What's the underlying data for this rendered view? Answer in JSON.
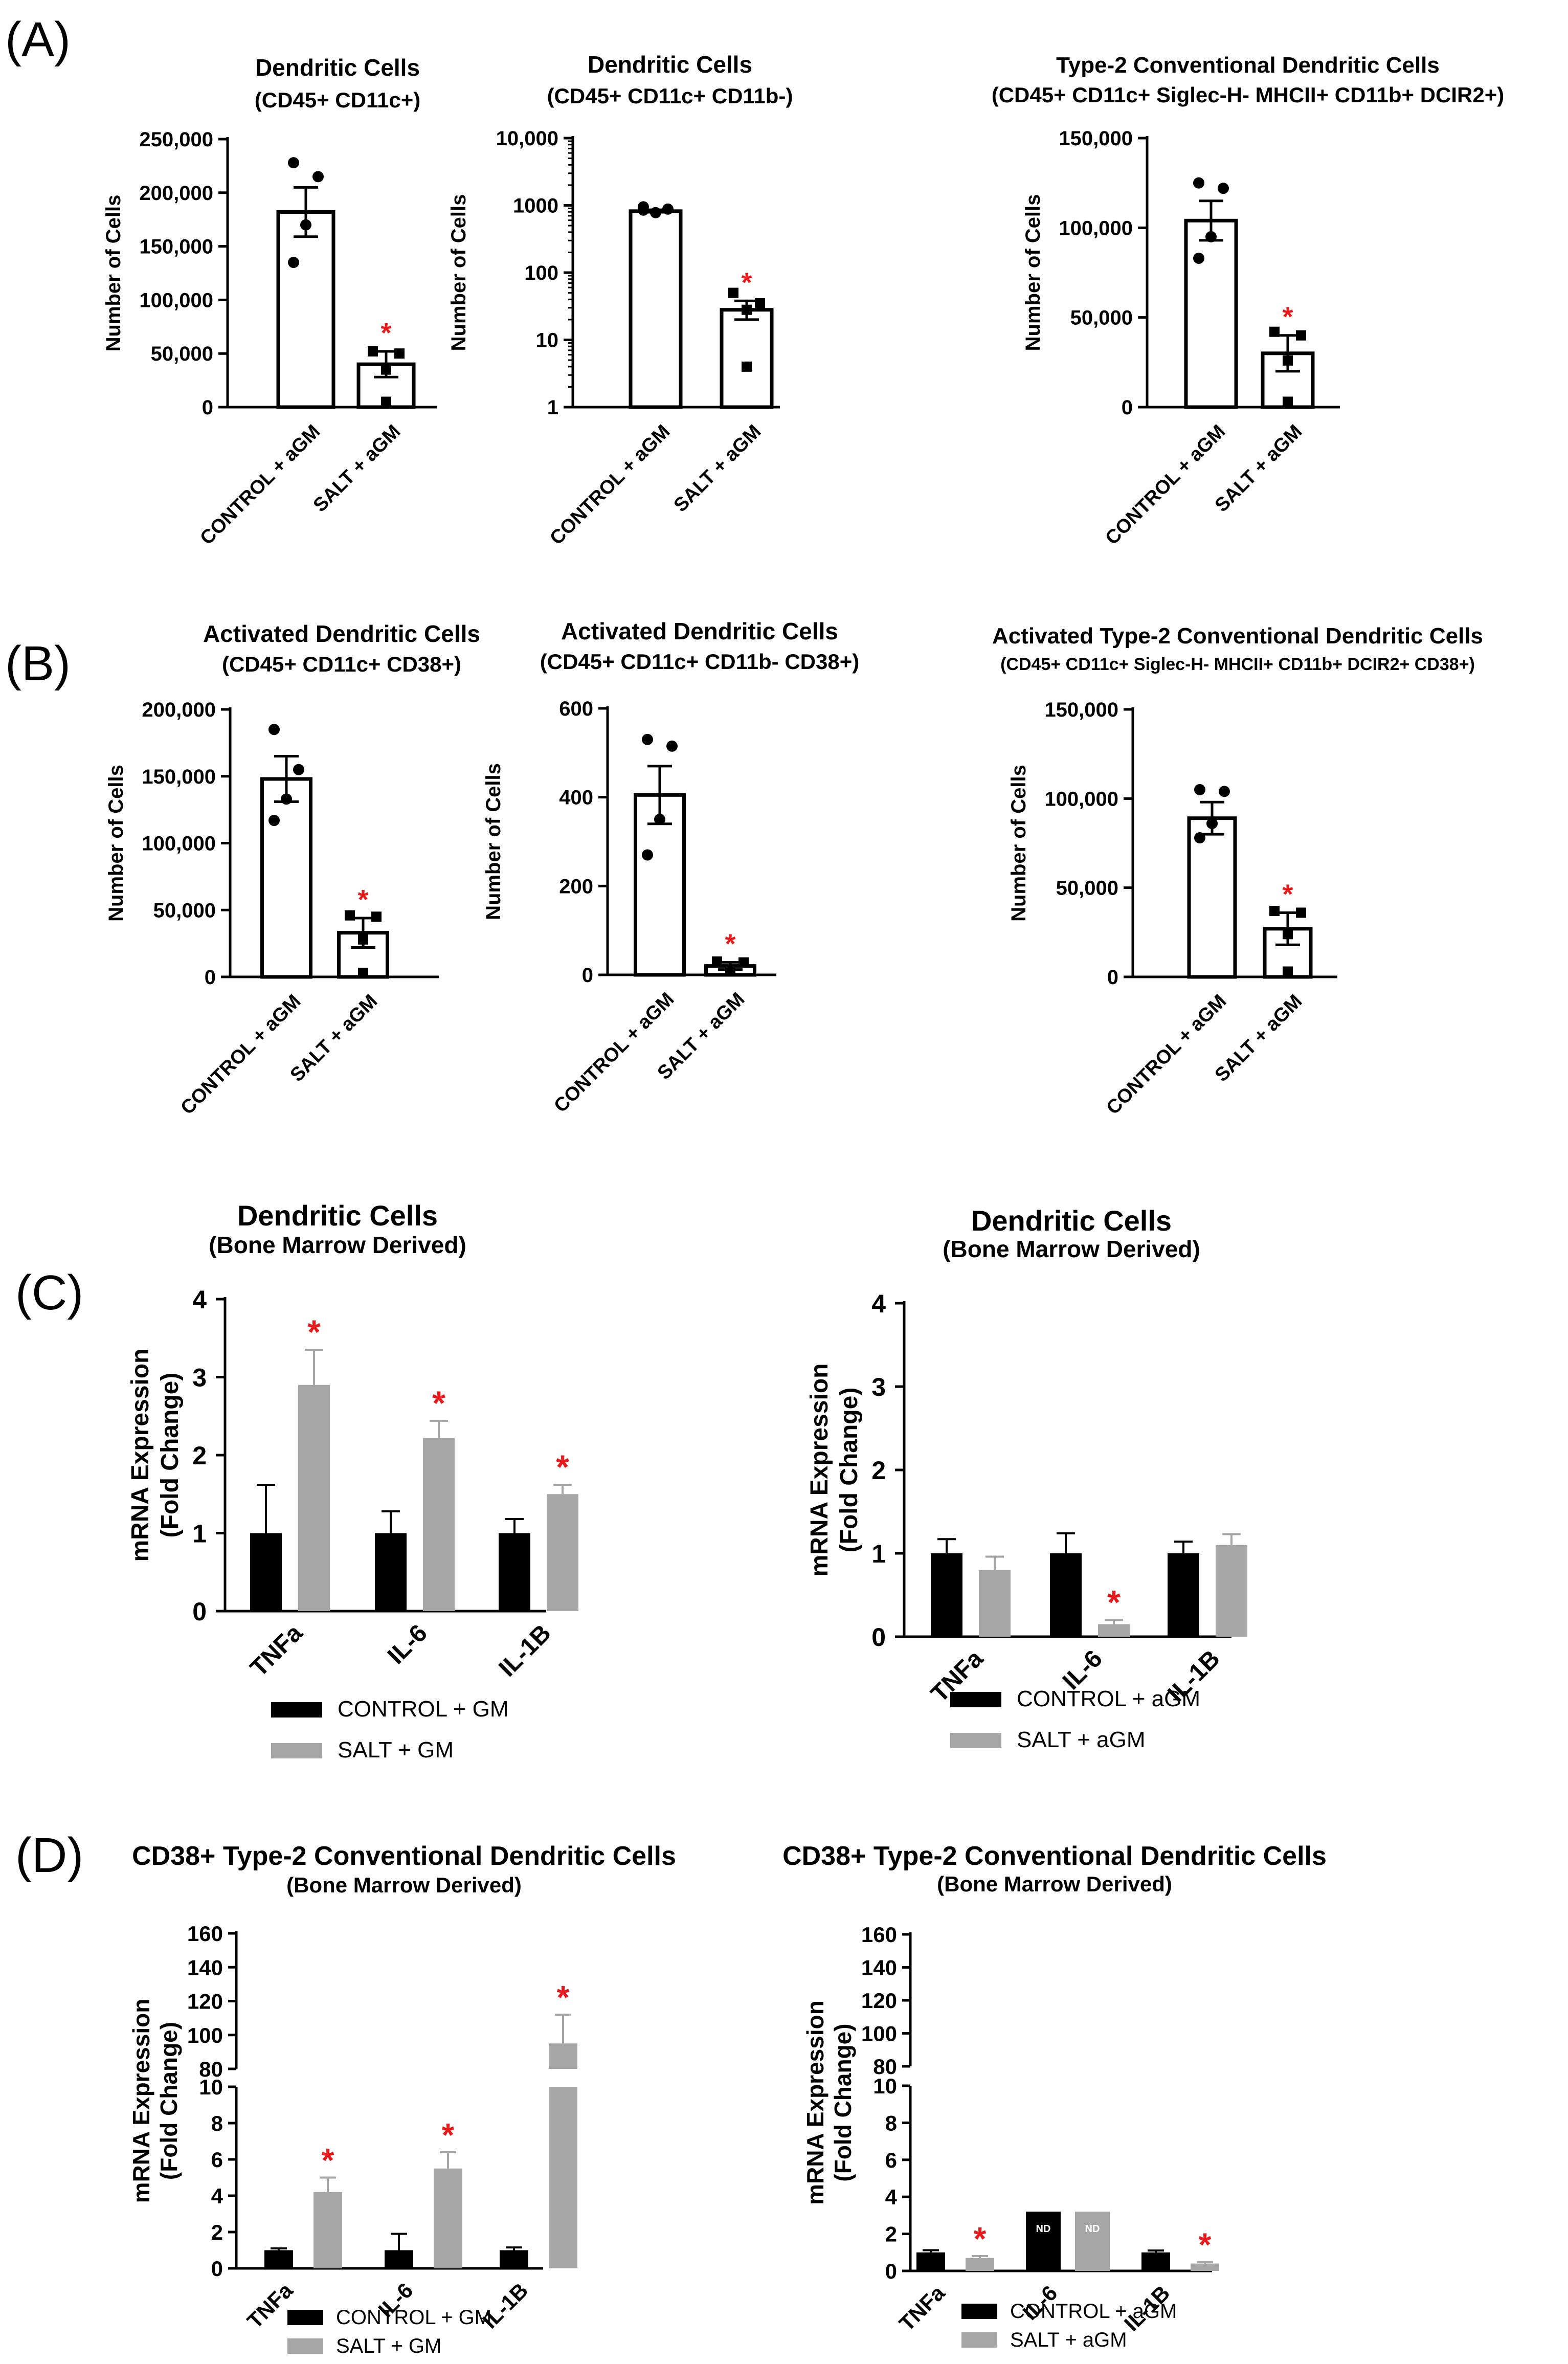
{
  "figure": {
    "panel_labels": [
      "(A)",
      "(B)",
      "(C)",
      "(D)"
    ],
    "colors": {
      "control": "#000000",
      "salt": "#a6a6a6",
      "significance": "#e8191a",
      "axis": "#000000",
      "bar_outline": "#000000",
      "bar_fill": "#ffffff"
    },
    "nd_label": "ND"
  },
  "chart_data": [
    {
      "id": "A1",
      "type": "bar",
      "title": "Dendritic Cells",
      "subtitle": "(CD45+ CD11c+)",
      "ylabel": "Number of Cells",
      "yscale": "linear",
      "ylim": [
        0,
        250000
      ],
      "yticks": [
        0,
        50000,
        100000,
        150000,
        200000,
        250000
      ],
      "ytick_labels": [
        "0",
        "50,000",
        "100,000",
        "150,000",
        "200,000",
        "250,000"
      ],
      "categories": [
        "CONTROL + aGM",
        "SALT + aGM"
      ],
      "values": [
        182000,
        40000
      ],
      "errors": [
        23000,
        12000
      ],
      "points": [
        [
          228000,
          215000,
          170000,
          135000
        ],
        [
          52000,
          50000,
          35000,
          5000
        ]
      ],
      "significant": [
        false,
        true
      ],
      "star": "*"
    },
    {
      "id": "A2",
      "type": "bar",
      "title": "Dendritic Cells",
      "subtitle": "(CD45+ CD11c+ CD11b-)",
      "ylabel": "Number of Cells",
      "yscale": "log",
      "ylim": [
        1,
        10000
      ],
      "yticks": [
        1,
        10,
        100,
        1000,
        10000
      ],
      "ytick_labels": [
        "1",
        "10",
        "100",
        "1000",
        "10,000"
      ],
      "categories": [
        "CONTROL + aGM",
        "SALT + aGM"
      ],
      "values": [
        820,
        28
      ],
      "errors": [
        [
          790,
          860
        ],
        [
          20,
          38
        ]
      ],
      "points": [
        [
          950,
          880,
          780,
          850
        ],
        [
          50,
          35,
          28,
          4
        ]
      ],
      "significant": [
        false,
        true
      ],
      "star": "*"
    },
    {
      "id": "A3",
      "type": "bar",
      "title": "Type-2 Conventional Dendritic Cells",
      "subtitle": "(CD45+ CD11c+ Siglec-H- MHCII+ CD11b+ DCIR2+)",
      "ylabel": "Number of Cells",
      "yscale": "linear",
      "ylim": [
        0,
        150000
      ],
      "yticks": [
        0,
        50000,
        100000,
        150000
      ],
      "ytick_labels": [
        "0",
        "50,000",
        "100,000",
        "150,000"
      ],
      "categories": [
        "CONTROL + aGM",
        "SALT + aGM"
      ],
      "values": [
        104000,
        30000
      ],
      "errors": [
        11000,
        10000
      ],
      "points": [
        [
          125000,
          122000,
          95000,
          83000
        ],
        [
          42000,
          40000,
          26000,
          3000
        ]
      ],
      "significant": [
        false,
        true
      ],
      "star": "*"
    },
    {
      "id": "B1",
      "type": "bar",
      "title": "Activated Dendritic Cells",
      "subtitle": "(CD45+ CD11c+ CD38+)",
      "ylabel": "Number of Cells",
      "yscale": "linear",
      "ylim": [
        0,
        200000
      ],
      "yticks": [
        0,
        50000,
        100000,
        150000,
        200000
      ],
      "ytick_labels": [
        "0",
        "50,000",
        "100,000",
        "150,000",
        "200,000"
      ],
      "categories": [
        "CONTROL + aGM",
        "SALT + aGM"
      ],
      "values": [
        148000,
        33000
      ],
      "errors": [
        17000,
        11000
      ],
      "points": [
        [
          185000,
          155000,
          133000,
          117000
        ],
        [
          46000,
          45000,
          28000,
          3000
        ]
      ],
      "significant": [
        false,
        true
      ],
      "star": "*"
    },
    {
      "id": "B2",
      "type": "bar",
      "title": "Activated Dendritic Cells",
      "subtitle": "(CD45+ CD11c+ CD11b- CD38+)",
      "ylabel": "Number of Cells",
      "yscale": "linear",
      "ylim": [
        0,
        600
      ],
      "yticks": [
        0,
        200,
        400,
        600
      ],
      "ytick_labels": [
        "0",
        "200",
        "400",
        "600"
      ],
      "categories": [
        "CONTROL + aGM",
        "SALT + aGM"
      ],
      "values": [
        405,
        20
      ],
      "errors": [
        65,
        8
      ],
      "points": [
        [
          530,
          515,
          350,
          270
        ],
        [
          30,
          28,
          12,
          8
        ]
      ],
      "significant": [
        false,
        true
      ],
      "star": "*"
    },
    {
      "id": "B3",
      "type": "bar",
      "title": "Activated Type-2 Conventional Dendritic Cells",
      "subtitle": "(CD45+ CD11c+ Siglec-H- MHCII+ CD11b+ DCIR2+ CD38+)",
      "ylabel": "Number of Cells",
      "yscale": "linear",
      "ylim": [
        0,
        150000
      ],
      "yticks": [
        0,
        50000,
        100000,
        150000
      ],
      "ytick_labels": [
        "0",
        "50,000",
        "100,000",
        "150,000"
      ],
      "categories": [
        "CONTROL + aGM",
        "SALT + aGM"
      ],
      "values": [
        89000,
        27000
      ],
      "errors": [
        9000,
        9000
      ],
      "points": [
        [
          105000,
          104000,
          86000,
          78000
        ],
        [
          37000,
          36000,
          24000,
          3000
        ]
      ],
      "significant": [
        false,
        true
      ],
      "star": "*"
    },
    {
      "id": "C1",
      "type": "bar",
      "title": "Dendritic Cells",
      "subtitle": "(Bone Marrow Derived)",
      "ylabel": "mRNA Expression",
      "ylabel2": "(Fold Change)",
      "yscale": "linear",
      "ylim": [
        0,
        4
      ],
      "yticks": [
        0,
        1,
        2,
        3,
        4
      ],
      "ytick_labels": [
        "0",
        "1",
        "2",
        "3",
        "4"
      ],
      "categories": [
        "TNFa",
        "IL-6",
        "IL-1B"
      ],
      "series": [
        {
          "name": "CONTROL + GM",
          "values": [
            1.0,
            1.0,
            1.0
          ],
          "errors": [
            0.62,
            0.28,
            0.18
          ],
          "significant": [
            false,
            false,
            false
          ]
        },
        {
          "name": "SALT + GM",
          "values": [
            2.9,
            2.22,
            1.5
          ],
          "errors": [
            0.45,
            0.22,
            0.12
          ],
          "significant": [
            true,
            true,
            true
          ]
        }
      ],
      "star": "*"
    },
    {
      "id": "C2",
      "type": "bar",
      "title": "Dendritic Cells",
      "subtitle": "(Bone Marrow Derived)",
      "ylabel": "mRNA Expression",
      "ylabel2": "(Fold Change)",
      "yscale": "linear",
      "ylim": [
        0,
        4
      ],
      "yticks": [
        0,
        1,
        2,
        3,
        4
      ],
      "ytick_labels": [
        "0",
        "1",
        "2",
        "3",
        "4"
      ],
      "categories": [
        "TNFa",
        "IL-6",
        "IL-1B"
      ],
      "series": [
        {
          "name": "CONTROL + aGM",
          "values": [
            1.0,
            1.0,
            1.0
          ],
          "errors": [
            0.17,
            0.24,
            0.14
          ],
          "significant": [
            false,
            false,
            false
          ]
        },
        {
          "name": "SALT + aGM",
          "values": [
            0.8,
            0.15,
            1.1
          ],
          "errors": [
            0.16,
            0.05,
            0.13
          ],
          "significant": [
            false,
            true,
            false
          ]
        }
      ],
      "star": "*"
    },
    {
      "id": "D1",
      "type": "bar",
      "title": "CD38+ Type-2 Conventional Dendritic Cells",
      "subtitle": "(Bone Marrow Derived)",
      "ylabel": "mRNA Expression",
      "ylabel2": "(Fold Change)",
      "yscale": "broken",
      "ylim_lower": [
        0,
        10
      ],
      "ylim_upper": [
        80,
        160
      ],
      "yticks_lower": [
        0,
        2,
        4,
        6,
        8,
        10
      ],
      "yticks_upper": [
        80,
        100,
        120,
        140,
        160
      ],
      "ytick_labels_lower": [
        "0",
        "2",
        "4",
        "6",
        "8",
        "10"
      ],
      "ytick_labels_upper": [
        "80",
        "100",
        "120",
        "140",
        "160"
      ],
      "categories": [
        "TNFa",
        "IL-6",
        "IL-1B"
      ],
      "series": [
        {
          "name": "CONTROL + GM",
          "values": [
            1.0,
            1.0,
            1.0
          ],
          "errors": [
            0.1,
            0.9,
            0.15
          ],
          "significant": [
            false,
            false,
            false
          ]
        },
        {
          "name": "SALT + GM",
          "values": [
            4.2,
            5.5,
            95
          ],
          "errors": [
            0.8,
            0.9,
            17
          ],
          "significant": [
            true,
            true,
            true
          ]
        }
      ],
      "star": "*"
    },
    {
      "id": "D2",
      "type": "bar",
      "title": "CD38+ Type-2 Conventional Dendritic Cells",
      "subtitle": "(Bone Marrow Derived)",
      "ylabel": "mRNA Expression",
      "ylabel2": "(Fold Change)",
      "yscale": "broken",
      "ylim_lower": [
        0,
        10
      ],
      "ylim_upper": [
        80,
        160
      ],
      "yticks_lower": [
        0,
        2,
        4,
        6,
        8,
        10
      ],
      "yticks_upper": [
        80,
        100,
        120,
        140,
        160
      ],
      "ytick_labels_lower": [
        "0",
        "2",
        "4",
        "6",
        "8",
        "10"
      ],
      "ytick_labels_upper": [
        "80",
        "100",
        "120",
        "140",
        "160"
      ],
      "categories": [
        "TNFa",
        "IL-6",
        "IL-1B"
      ],
      "series": [
        {
          "name": "CONTROL + aGM",
          "values": [
            1.0,
            null,
            1.0
          ],
          "errors": [
            0.12,
            null,
            0.1
          ],
          "significant": [
            false,
            false,
            false
          ],
          "nd": [
            false,
            true,
            false
          ]
        },
        {
          "name": "SALT + aGM",
          "values": [
            0.7,
            null,
            0.4
          ],
          "errors": [
            0.1,
            null,
            0.08
          ],
          "significant": [
            true,
            false,
            true
          ],
          "nd": [
            false,
            true,
            false
          ]
        }
      ],
      "star": "*"
    }
  ]
}
